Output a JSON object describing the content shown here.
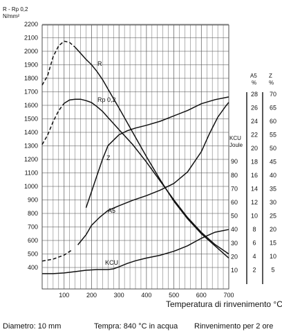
{
  "chart_data": {
    "type": "line",
    "title": "",
    "xlabel": "Temperatura di rinvenimento °C",
    "xlim": [
      20,
      700
    ],
    "x_ticks": [
      100,
      200,
      300,
      400,
      500,
      600,
      700
    ],
    "grid": true,
    "axes": {
      "strength": {
        "label_line1": "R - Rp 0,2",
        "label_line2": "N/mm²",
        "range": [
          300,
          2200
        ],
        "ticks": [
          400,
          500,
          600,
          700,
          800,
          900,
          1000,
          1100,
          1200,
          1300,
          1400,
          1500,
          1600,
          1700,
          1800,
          1900,
          2000,
          2100,
          2200
        ]
      },
      "kcu": {
        "label_line1": "KCU",
        "label_line2": "Joule",
        "ticks": [
          10,
          20,
          30,
          40,
          50,
          60,
          70,
          80,
          90
        ]
      },
      "a5": {
        "label_line1": "A5",
        "label_line2": "%",
        "ticks": [
          2,
          4,
          6,
          8,
          10,
          12,
          14,
          16,
          18,
          20,
          22,
          24,
          26,
          28
        ]
      },
      "z": {
        "label_line1": "Z",
        "label_line2": "%",
        "ticks": [
          5,
          10,
          15,
          20,
          25,
          30,
          35,
          40,
          45,
          50,
          55,
          60,
          65,
          70
        ]
      }
    },
    "series": [
      {
        "name": "R",
        "axis": "strength",
        "dashed_until": 140,
        "x": [
          20,
          40,
          60,
          80,
          100,
          120,
          140,
          160,
          180,
          200,
          220,
          240,
          260,
          280,
          300,
          350,
          400,
          450,
          500,
          550,
          600,
          650,
          700
        ],
        "y": [
          1750,
          1820,
          1960,
          2040,
          2075,
          2065,
          2030,
          1985,
          1940,
          1900,
          1850,
          1790,
          1720,
          1650,
          1580,
          1400,
          1220,
          1050,
          890,
          760,
          650,
          560,
          470
        ]
      },
      {
        "name": "Rp 0,2",
        "axis": "strength",
        "dashed_until": 100,
        "x": [
          20,
          40,
          60,
          80,
          100,
          120,
          140,
          160,
          180,
          200,
          220,
          240,
          260,
          280,
          300,
          350,
          400,
          450,
          500,
          550,
          600,
          650,
          700
        ],
        "y": [
          1310,
          1380,
          1480,
          1560,
          1615,
          1640,
          1645,
          1645,
          1635,
          1620,
          1590,
          1555,
          1510,
          1465,
          1420,
          1310,
          1180,
          1040,
          900,
          770,
          660,
          570,
          500
        ]
      },
      {
        "name": "Z",
        "axis": "z",
        "dashed_until": 0,
        "x": [
          180,
          200,
          220,
          240,
          260,
          280,
          300,
          330,
          360,
          400,
          450,
          500,
          550,
          600,
          650,
          700
        ],
        "y": [
          28,
          34,
          40,
          46,
          51,
          53,
          55,
          56.5,
          57.5,
          58.5,
          60,
          62,
          64,
          66.5,
          68,
          69
        ]
      },
      {
        "name": "A5",
        "axis": "a5",
        "dashed_until": 140,
        "x": [
          20,
          60,
          100,
          130,
          150,
          180,
          200,
          230,
          260,
          300,
          350,
          400,
          450,
          500,
          550,
          600,
          630,
          660,
          690,
          700
        ],
        "y": [
          3.3,
          3.6,
          4.2,
          5.0,
          5.7,
          7.2,
          8.6,
          9.8,
          10.8,
          11.5,
          12.3,
          13.0,
          13.8,
          14.8,
          16.5,
          19.5,
          22.2,
          24.6,
          26.3,
          26.8
        ]
      },
      {
        "name": "KCU",
        "axis": "kcu",
        "dashed_until": 0,
        "x": [
          20,
          60,
          100,
          140,
          180,
          220,
          260,
          280,
          300,
          330,
          360,
          400,
          450,
          500,
          550,
          600,
          650,
          700
        ],
        "y": [
          7.5,
          7.5,
          8,
          9,
          10,
          10.5,
          10.5,
          11,
          12.5,
          15,
          17,
          19,
          21,
          24,
          28,
          33.5,
          38,
          40
        ]
      }
    ]
  },
  "footer": {
    "diameter": "Diametro: 10 mm",
    "tempra": "Tempra: 840 °C in acqua",
    "rinvenimento": "Rinvenimento per 2 ore"
  }
}
